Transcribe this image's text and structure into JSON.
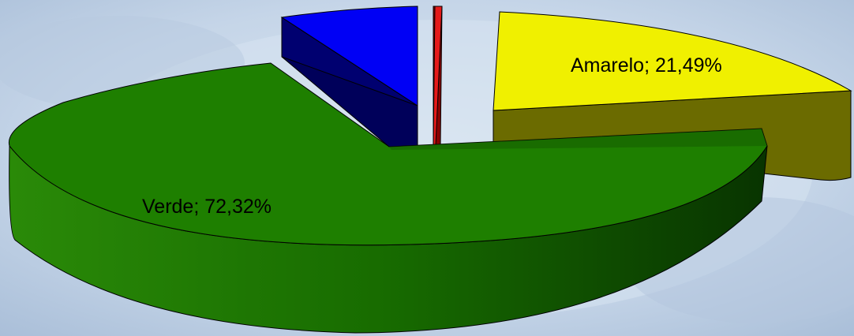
{
  "chart_data": {
    "type": "pie",
    "style": "3d-exploded",
    "slices": [
      {
        "name": "Amarelo",
        "value": 21.49,
        "label": "Amarelo; 21,49%",
        "color": "#F0F000",
        "shade": "#6B6B00",
        "label_shown": true
      },
      {
        "name": "Verde",
        "value": 72.32,
        "label": "Verde; 72,32%",
        "color": "#1E7F00",
        "shade": "#0E3D00",
        "label_shown": true
      },
      {
        "name": "Azul",
        "value": 5.7,
        "label": "",
        "color": "#0000F5",
        "shade": "#000070",
        "label_shown": false
      },
      {
        "name": "Vermelho",
        "value": 0.49,
        "label": "",
        "color": "#E51A1A",
        "shade": "#8A0000",
        "label_shown": false
      }
    ],
    "background": "#C7D7E8"
  }
}
